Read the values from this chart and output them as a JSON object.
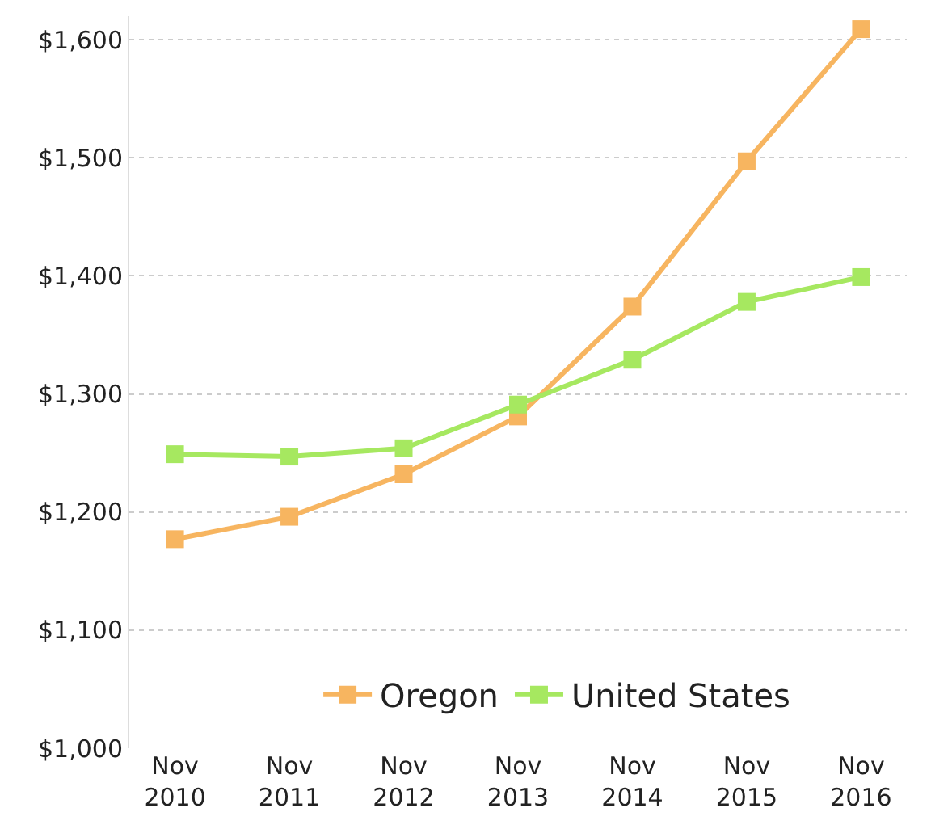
{
  "chart_data": {
    "type": "line",
    "categories": [
      "Nov 2010",
      "Nov 2011",
      "Nov 2012",
      "Nov 2013",
      "Nov 2014",
      "Nov 2015",
      "Nov 2016"
    ],
    "series": [
      {
        "name": "Oregon",
        "color": "#f7b560",
        "values": [
          1177,
          1196,
          1232,
          1281,
          1374,
          1497,
          1609
        ]
      },
      {
        "name": "United States",
        "color": "#a6e860",
        "values": [
          1249,
          1247,
          1254,
          1291,
          1329,
          1378,
          1399
        ]
      }
    ],
    "ylim": [
      1000,
      1620
    ],
    "yticks": [
      {
        "value": 1000,
        "label": "$1,000"
      },
      {
        "value": 1100,
        "label": "$1,100"
      },
      {
        "value": 1200,
        "label": "$1,200"
      },
      {
        "value": 1300,
        "label": "$1,300"
      },
      {
        "value": 1400,
        "label": "$1,400"
      },
      {
        "value": 1500,
        "label": "$1,500"
      },
      {
        "value": 1600,
        "label": "$1,600"
      }
    ],
    "grid": "y",
    "legend": "bottom",
    "marker": "square",
    "line_style": "solid"
  }
}
